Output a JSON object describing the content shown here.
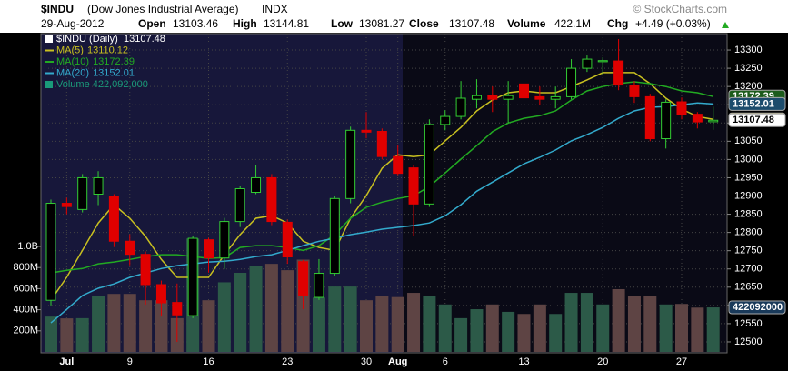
{
  "chart_data": {
    "type": "candlestick",
    "header": {
      "symbol": "$INDU",
      "name": "(Dow Jones Industrial Average)",
      "exchange": "INDX",
      "copyright": "© StockCharts.com",
      "date": "29-Aug-2012",
      "open_label": "Open",
      "high_label": "High",
      "low_label": "Low",
      "close_label": "Close",
      "volume_label": "Volume",
      "volume_text": "422.1M",
      "change_label": "Chg",
      "change_text": "+4.49 (+0.03%)"
    },
    "price_legend": "$INDU (Daily)",
    "categories": [
      null,
      "Jul",
      null,
      null,
      null,
      "9",
      null,
      null,
      null,
      null,
      "16",
      null,
      null,
      null,
      null,
      "23",
      null,
      null,
      null,
      null,
      "30",
      null,
      "Aug",
      null,
      null,
      "6",
      null,
      null,
      null,
      null,
      "13",
      null,
      null,
      null,
      null,
      "20",
      null,
      null,
      null,
      null,
      "27",
      null,
      null
    ],
    "ohlc": {
      "up_color": "#33cc33",
      "down_color": "#e00000",
      "open": [
        12614,
        12880,
        12863,
        12905,
        12900,
        12776,
        12740,
        12657,
        12608,
        12572,
        12780,
        12730,
        12830,
        12910,
        12950,
        12828,
        12720,
        12622,
        12688,
        12893,
        13080,
        13077,
        13008,
        12977,
        12878,
        13096,
        13118,
        13165,
        13175,
        13165,
        13207,
        13172,
        13165,
        13172,
        13250,
        13268,
        13270,
        13204,
        13172,
        13057,
        13158,
        13124,
        13103.46
      ],
      "high": [
        12890,
        12895,
        12960,
        12968,
        12905,
        12795,
        12748,
        12668,
        12660,
        12790,
        12785,
        12840,
        12928,
        12985,
        12960,
        12835,
        12725,
        12727,
        12900,
        13090,
        13130,
        13085,
        13040,
        12985,
        13110,
        13135,
        13215,
        13220,
        13200,
        13215,
        13220,
        13200,
        13200,
        13275,
        13285,
        13280,
        13330,
        13215,
        13180,
        13165,
        13170,
        13130,
        13144.81
      ],
      "low": [
        12600,
        12850,
        12855,
        12875,
        12760,
        12710,
        12602,
        12572,
        12500,
        12565,
        12690,
        12700,
        12815,
        12905,
        12820,
        12714,
        12590,
        12615,
        12680,
        12880,
        13058,
        13000,
        12955,
        12790,
        12870,
        13080,
        13110,
        13140,
        13130,
        13100,
        13150,
        13150,
        13140,
        13165,
        13240,
        13230,
        13190,
        13155,
        13050,
        13030,
        13110,
        13085,
        13081.27
      ],
      "close": [
        12880,
        12871,
        12950,
        12950,
        12776,
        12740,
        12657,
        12607,
        12574,
        12784,
        12730,
        12830,
        12920,
        12950,
        12830,
        12733,
        12626,
        12688,
        12893,
        13080,
        13075,
        13008,
        12962,
        12878,
        13096,
        13118,
        13168,
        13175,
        13165,
        13175,
        13169,
        13165,
        13172,
        13250,
        13275,
        13271,
        13204,
        13172,
        13057,
        13157,
        13124,
        13103,
        13107.48
      ]
    },
    "series": [
      {
        "name": "MA(5)",
        "color": "#c8c020",
        "values": [
          12614,
          12677,
          12751,
          12826,
          12876,
          12839,
          12789,
          12726,
          12677,
          12677,
          12677,
          12739,
          12794,
          12839,
          12846,
          12826,
          12776,
          12759,
          12751,
          12839,
          12901,
          12976,
          13013,
          13008,
          13013,
          13051,
          13088,
          13133,
          13163,
          13183,
          13188,
          13183,
          13183,
          13200,
          13218,
          13238,
          13238,
          13238,
          13208,
          13168,
          13138,
          13118,
          13110.12
        ]
      },
      {
        "name": "MA(10)",
        "color": "#22aa22",
        "values": [
          12689,
          12696,
          12701,
          12714,
          12719,
          12726,
          12734,
          12739,
          12739,
          12734,
          12729,
          12731,
          12759,
          12764,
          12764,
          12759,
          12751,
          12764,
          12794,
          12839,
          12869,
          12883,
          12893,
          12901,
          12926,
          12963,
          13001,
          13038,
          13076,
          13100,
          13113,
          13120,
          13133,
          13163,
          13188,
          13200,
          13208,
          13213,
          13208,
          13200,
          13188,
          13183,
          13172.39
        ]
      },
      {
        "name": "MA(20)",
        "color": "#33aacc",
        "values": [
          12552,
          12589,
          12627,
          12647,
          12659,
          12677,
          12689,
          12701,
          12709,
          12714,
          12719,
          12721,
          12726,
          12734,
          12739,
          12751,
          12764,
          12776,
          12784,
          12794,
          12801,
          12809,
          12814,
          12819,
          12826,
          12846,
          12876,
          12913,
          12938,
          12963,
          12988,
          13006,
          13026,
          13051,
          13068,
          13088,
          13113,
          13133,
          13143,
          13145,
          13150,
          13155,
          13152.01
        ]
      }
    ],
    "volume": {
      "name": "Volume",
      "legend_label": "422,092,000",
      "color": "#1a9a7a",
      "up_color": "#2c5a48",
      "down_color": "#5e4444",
      "values": [
        335000000,
        318000000,
        320000000,
        530000000,
        550000000,
        550000000,
        490000000,
        490000000,
        320000000,
        1075000000,
        490000000,
        660000000,
        750000000,
        815000000,
        835000000,
        775000000,
        875000000,
        515000000,
        620000000,
        620000000,
        490000000,
        530000000,
        520000000,
        560000000,
        530000000,
        450000000,
        320000000,
        405000000,
        450000000,
        380000000,
        360000000,
        450000000,
        360000000,
        560000000,
        560000000,
        450000000,
        595000000,
        530000000,
        530000000,
        450000000,
        455000000,
        420000000,
        422092000
      ],
      "vlim": [
        0,
        1000000000
      ],
      "vticks": [
        {
          "value": 200000000,
          "label": "200M"
        },
        {
          "value": 400000000,
          "label": "400M"
        },
        {
          "value": 600000000,
          "label": "600M"
        },
        {
          "value": 800000000,
          "label": "800M"
        },
        {
          "value": 1000000000,
          "label": "1.0B"
        }
      ]
    },
    "ylim": [
      12470,
      13345
    ],
    "yticks": [
      12500,
      12550,
      12600,
      12650,
      12700,
      12750,
      12800,
      12850,
      12900,
      12950,
      13000,
      13050,
      13100,
      13150,
      13200,
      13250,
      13300
    ],
    "grid": true
  }
}
